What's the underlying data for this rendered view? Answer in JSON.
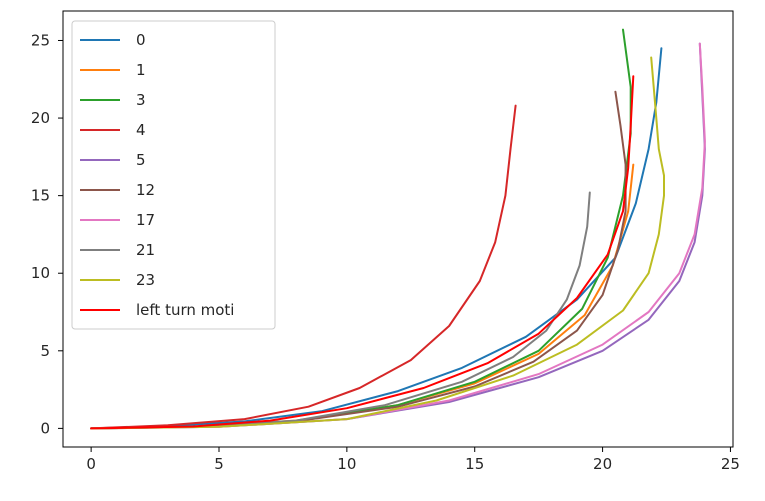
{
  "chart_data": {
    "type": "line",
    "title": "",
    "xlabel": "",
    "ylabel": "",
    "xlim": [
      -1.1,
      25.1
    ],
    "ylim": [
      -1.2,
      26.9
    ],
    "xticks": [
      0,
      5,
      10,
      15,
      20,
      25
    ],
    "yticks": [
      0,
      5,
      10,
      15,
      20,
      25
    ],
    "grid": false,
    "legend_position": "upper-left",
    "series": [
      {
        "name": "0",
        "color": "#1f77b4",
        "points": [
          [
            0,
            0
          ],
          [
            3,
            0.15
          ],
          [
            6,
            0.45
          ],
          [
            9,
            1.1
          ],
          [
            12,
            2.4
          ],
          [
            14.5,
            3.9
          ],
          [
            17,
            5.9
          ],
          [
            19,
            8.3
          ],
          [
            20.5,
            11
          ],
          [
            21.3,
            14.5
          ],
          [
            21.8,
            18
          ],
          [
            22.1,
            21
          ],
          [
            22.3,
            24.5
          ]
        ]
      },
      {
        "name": "1",
        "color": "#ff7f0e",
        "points": [
          [
            0,
            0
          ],
          [
            4,
            0.1
          ],
          [
            8,
            0.5
          ],
          [
            12,
            1.5
          ],
          [
            15,
            2.9
          ],
          [
            17.5,
            4.8
          ],
          [
            19.3,
            7.3
          ],
          [
            20.4,
            10.5
          ],
          [
            21,
            14
          ],
          [
            21.2,
            17
          ]
        ]
      },
      {
        "name": "3",
        "color": "#2ca02c",
        "points": [
          [
            0,
            0
          ],
          [
            4,
            0.1
          ],
          [
            8,
            0.45
          ],
          [
            12,
            1.5
          ],
          [
            15,
            3
          ],
          [
            17.5,
            5
          ],
          [
            19.2,
            7.7
          ],
          [
            20.2,
            11
          ],
          [
            20.8,
            15
          ],
          [
            21.1,
            19
          ],
          [
            21.1,
            22
          ],
          [
            20.8,
            25.7
          ]
        ]
      },
      {
        "name": "4",
        "color": "#d62728",
        "points": [
          [
            0,
            0
          ],
          [
            3,
            0.2
          ],
          [
            6,
            0.6
          ],
          [
            8.5,
            1.4
          ],
          [
            10.5,
            2.6
          ],
          [
            12.5,
            4.4
          ],
          [
            14,
            6.6
          ],
          [
            15.2,
            9.5
          ],
          [
            15.8,
            12
          ],
          [
            16.2,
            15
          ],
          [
            16.4,
            18
          ],
          [
            16.6,
            20.8
          ]
        ]
      },
      {
        "name": "5",
        "color": "#9467bd",
        "points": [
          [
            0,
            0
          ],
          [
            5,
            0.1
          ],
          [
            10,
            0.6
          ],
          [
            14,
            1.7
          ],
          [
            17.5,
            3.3
          ],
          [
            20,
            5
          ],
          [
            21.8,
            7
          ],
          [
            23,
            9.5
          ],
          [
            23.6,
            12
          ],
          [
            23.9,
            15
          ],
          [
            24,
            18
          ],
          [
            23.9,
            21.5
          ],
          [
            23.8,
            24.8
          ]
        ]
      },
      {
        "name": "12",
        "color": "#8c564b",
        "points": [
          [
            0,
            0
          ],
          [
            4,
            0.1
          ],
          [
            8,
            0.45
          ],
          [
            12,
            1.4
          ],
          [
            15,
            2.7
          ],
          [
            17.3,
            4.3
          ],
          [
            19,
            6.3
          ],
          [
            20,
            8.6
          ],
          [
            20.6,
            11.5
          ],
          [
            20.9,
            14
          ],
          [
            20.9,
            17
          ],
          [
            20.7,
            19.5
          ],
          [
            20.5,
            21.7
          ]
        ]
      },
      {
        "name": "17",
        "color": "#e377c2",
        "points": [
          [
            0,
            0
          ],
          [
            5,
            0.1
          ],
          [
            10,
            0.6
          ],
          [
            14,
            1.8
          ],
          [
            17.5,
            3.5
          ],
          [
            20,
            5.4
          ],
          [
            21.8,
            7.5
          ],
          [
            23,
            10
          ],
          [
            23.6,
            12.5
          ],
          [
            23.9,
            15.5
          ],
          [
            24,
            18.5
          ],
          [
            23.9,
            22
          ],
          [
            23.8,
            24.8
          ]
        ]
      },
      {
        "name": "21",
        "color": "#7f7f7f",
        "points": [
          [
            0,
            0
          ],
          [
            4,
            0.1
          ],
          [
            8,
            0.5
          ],
          [
            11.5,
            1.5
          ],
          [
            14.5,
            3
          ],
          [
            16.5,
            4.6
          ],
          [
            17.8,
            6.3
          ],
          [
            18.6,
            8.3
          ],
          [
            19.1,
            10.5
          ],
          [
            19.4,
            13
          ],
          [
            19.5,
            15.2
          ]
        ]
      },
      {
        "name": "23",
        "color": "#bcbd22",
        "points": [
          [
            0,
            0
          ],
          [
            5,
            0.1
          ],
          [
            10,
            0.6
          ],
          [
            13.5,
            1.8
          ],
          [
            16.5,
            3.4
          ],
          [
            19,
            5.4
          ],
          [
            20.8,
            7.6
          ],
          [
            21.8,
            10
          ],
          [
            22.2,
            12.5
          ],
          [
            22.4,
            15
          ],
          [
            22.4,
            16.3
          ],
          [
            22.2,
            18
          ],
          [
            22.1,
            20
          ],
          [
            22.0,
            22
          ],
          [
            21.9,
            23.9
          ]
        ]
      },
      {
        "name": "left turn moti",
        "color": "#ff0000",
        "points": [
          [
            0,
            0
          ],
          [
            4,
            0.12
          ],
          [
            7,
            0.5
          ],
          [
            10,
            1.3
          ],
          [
            13,
            2.6
          ],
          [
            15.5,
            4.2
          ],
          [
            17.5,
            6.1
          ],
          [
            19,
            8.4
          ],
          [
            20.2,
            11.2
          ],
          [
            20.8,
            14
          ],
          [
            21,
            16.8
          ],
          [
            21.1,
            19.5
          ],
          [
            21.2,
            22.7
          ]
        ]
      }
    ]
  }
}
